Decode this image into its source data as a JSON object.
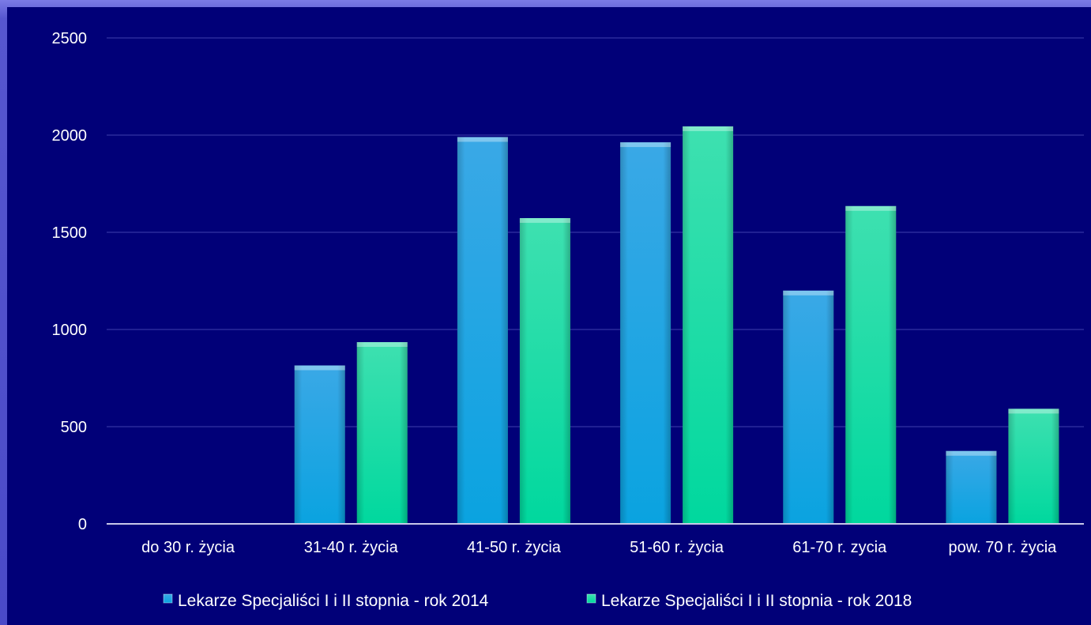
{
  "chart_data": {
    "type": "bar",
    "categories": [
      "do 30 r. życia",
      "31-40 r. życia",
      "41-50 r. życia",
      "51-60 r. życia",
      "61-70 r. zycia",
      "pow. 70 r. życia"
    ],
    "series": [
      {
        "name": "Lekarze Specjaliści I i II stopnia - rok 2014",
        "values": [
          0,
          815,
          1990,
          1963,
          1200,
          375
        ],
        "color": "#1aa7e2"
      },
      {
        "name": "Lekarze Specjaliści I i II stopnia - rok 2018",
        "values": [
          2,
          935,
          1573,
          2045,
          1635,
          592
        ],
        "color": "#10d6a0"
      }
    ],
    "yticks": [
      "0",
      "500",
      "1000",
      "1500",
      "2000",
      "2500"
    ],
    "ylim": [
      0,
      2500
    ],
    "grid": true,
    "legend": "bottom",
    "colors": {
      "background": "#010078",
      "frame": "#5a5ad0",
      "gridline": "#2a2a9a",
      "axis": "#c8c8e8"
    }
  }
}
